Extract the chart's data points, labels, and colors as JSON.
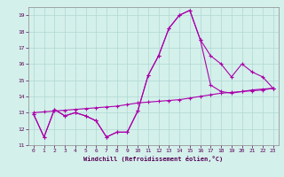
{
  "xlabel": "Windchill (Refroidissement éolien,°C)",
  "xlim": [
    -0.5,
    23.5
  ],
  "ylim": [
    11,
    19.5
  ],
  "yticks": [
    11,
    12,
    13,
    14,
    15,
    16,
    17,
    18,
    19
  ],
  "xticks": [
    0,
    1,
    2,
    3,
    4,
    5,
    6,
    7,
    8,
    9,
    10,
    11,
    12,
    13,
    14,
    15,
    16,
    17,
    18,
    19,
    20,
    21,
    22,
    23
  ],
  "background_color": "#d4f0eb",
  "grid_color": "#aed8d0",
  "line_color": "#aa00aa",
  "s1_x": [
    0,
    1,
    2,
    3,
    4,
    5,
    6,
    7,
    8,
    9,
    10,
    11,
    12,
    13,
    14,
    15,
    16,
    17,
    18,
    19,
    20,
    21,
    22,
    23
  ],
  "s1_y": [
    12.9,
    11.5,
    13.2,
    12.8,
    13.0,
    12.8,
    12.5,
    11.5,
    11.8,
    11.8,
    13.1,
    15.3,
    16.5,
    18.2,
    19.0,
    19.3,
    17.5,
    16.5,
    16.0,
    15.2,
    16.0,
    15.5,
    15.2,
    14.5
  ],
  "s2_x": [
    0,
    1,
    2,
    3,
    4,
    5,
    6,
    7,
    8,
    9,
    10,
    11,
    12,
    13,
    14,
    15,
    16,
    17,
    18,
    19,
    20,
    21,
    22,
    23
  ],
  "s2_y": [
    12.9,
    11.5,
    13.2,
    12.8,
    13.0,
    12.8,
    12.5,
    11.5,
    11.8,
    11.8,
    13.1,
    15.3,
    16.5,
    18.2,
    19.0,
    19.3,
    17.5,
    14.7,
    14.3,
    14.2,
    14.3,
    14.4,
    14.45,
    14.5
  ],
  "s3_x": [
    0,
    1,
    2,
    3,
    4,
    5,
    6,
    7,
    8,
    9,
    10,
    11,
    12,
    13,
    14,
    15,
    16,
    17,
    18,
    19,
    20,
    21,
    22,
    23
  ],
  "s3_y": [
    13.0,
    13.05,
    13.1,
    13.15,
    13.2,
    13.25,
    13.3,
    13.35,
    13.4,
    13.5,
    13.6,
    13.65,
    13.7,
    13.75,
    13.8,
    13.9,
    14.0,
    14.1,
    14.2,
    14.25,
    14.3,
    14.35,
    14.4,
    14.5
  ]
}
